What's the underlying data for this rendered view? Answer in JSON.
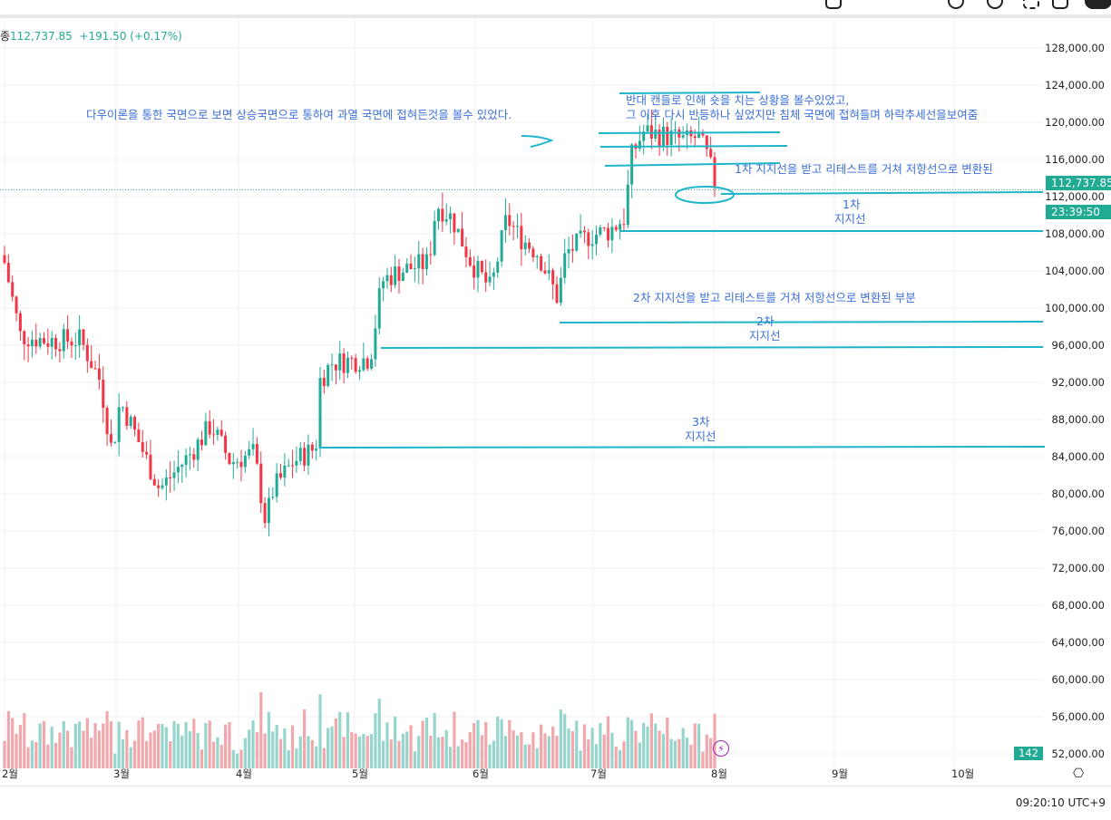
{
  "ticker": {
    "symbol_fragment": "종",
    "price": "112,737.85",
    "change": "+191.50 (+0.17%)"
  },
  "price_tag": {
    "price": "112,737.85",
    "countdown": "23:39:50"
  },
  "volume_badge": "142",
  "time_display": "09:20:10 UTC+9",
  "colors": {
    "up": "#22ab94",
    "down": "#f23645",
    "vol_up": "#95d5cc",
    "vol_down": "#f1a7ac",
    "drawing": "#1fb5c9",
    "text_annotation": "#3b6fd8"
  },
  "y_axis_labels": [
    "128,000.00",
    "124,000.00",
    "120,000.00",
    "116,000.00",
    "112,000.00",
    "108,000.00",
    "104,000.00",
    "100,000.00",
    "96,000.00",
    "92,000.00",
    "88,000.00",
    "84,000.00",
    "80,000.00",
    "76,000.00",
    "72,000.00",
    "68,000.00",
    "64,000.00",
    "60,000.00",
    "56,000.00",
    "52,000.00"
  ],
  "x_axis_labels": [
    "2월",
    "3월",
    "4월",
    "5월",
    "6월",
    "7월",
    "8월",
    "9월",
    "10월"
  ],
  "price_keypoints": [
    [
      "02-01",
      104900
    ],
    [
      "02-05",
      97000
    ],
    [
      "02-12",
      96500
    ],
    [
      "02-20",
      96600
    ],
    [
      "02-25",
      92200
    ],
    [
      "02-28",
      84400
    ],
    [
      "03-02",
      90000
    ],
    [
      "03-05",
      87300
    ],
    [
      "03-10",
      82400
    ],
    [
      "03-12",
      80500
    ],
    [
      "03-20",
      84400
    ],
    [
      "03-25",
      87400
    ],
    [
      "03-30",
      83400
    ],
    [
      "04-05",
      84400
    ],
    [
      "04-08",
      77000
    ],
    [
      "04-10",
      80500
    ],
    [
      "04-15",
      83400
    ],
    [
      "04-21",
      85000
    ],
    [
      "04-22",
      92200
    ],
    [
      "04-25",
      94100
    ],
    [
      "05-05",
      94600
    ],
    [
      "05-08",
      102900
    ],
    [
      "05-12",
      103900
    ],
    [
      "05-20",
      104900
    ],
    [
      "05-22",
      111200
    ],
    [
      "05-26",
      109700
    ],
    [
      "05-31",
      104900
    ],
    [
      "06-05",
      102000
    ],
    [
      "06-09",
      109700
    ],
    [
      "06-12",
      107800
    ],
    [
      "06-17",
      105900
    ],
    [
      "06-22",
      101000
    ],
    [
      "06-24",
      105900
    ],
    [
      "06-30",
      107800
    ],
    [
      "07-05",
      108300
    ],
    [
      "07-09",
      109700
    ],
    [
      "07-11",
      116600
    ],
    [
      "07-14",
      119000
    ],
    [
      "07-20",
      118500
    ],
    [
      "07-25",
      118000
    ],
    [
      "07-28",
      118500
    ],
    [
      "07-31",
      115600
    ],
    [
      "08-01",
      113200
    ],
    [
      "08-02",
      112737.85
    ]
  ],
  "annotations": {
    "dow_theory": "다우이론을 통한 국면으로 보면 상승국면으로 통하여 과열 국면에 접혀든것을 볼수 있었다.",
    "short_line1": "반대 캔들로 인해 숏을 치는 상황을 볼수있었고,",
    "short_line2": "그 이후 다시 반등하나 싶었지만 침체 국면에 접혀들며 하락추세선을보여줌",
    "retest1": "1차 지지선을 받고 리테스트를 거쳐 저항선으로 변환된",
    "support1_a": "1차",
    "support1_b": "지지선",
    "retest2": "2차 지지선을 받고 리테스트를 거쳐 저항선으로 변환된 부분",
    "support2_a": "2차",
    "support2_b": "지지선",
    "support3_a": "3차",
    "support3_b": "지지선"
  }
}
